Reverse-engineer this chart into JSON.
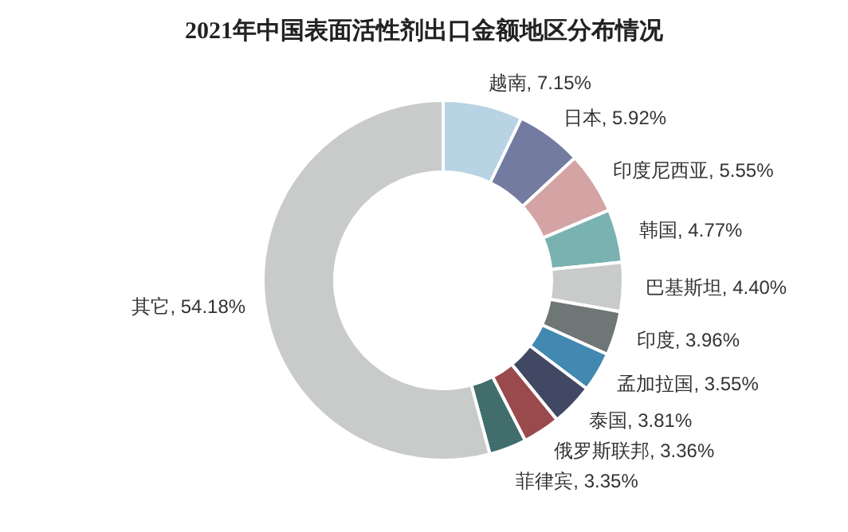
{
  "chart_data": {
    "type": "donut",
    "title": "2021年中国表面活性剂出口金额地区分布情况",
    "categories": [
      "越南",
      "日本",
      "印度尼西亚",
      "韩国",
      "巴基斯坦",
      "印度",
      "孟加拉国",
      "泰国",
      "俄罗斯联邦",
      "菲律宾",
      "其它"
    ],
    "values": [
      7.15,
      5.92,
      5.55,
      4.77,
      4.4,
      3.96,
      3.55,
      3.81,
      3.36,
      3.35,
      54.18
    ],
    "colors": [
      "#b7d3e4",
      "#737ba0",
      "#d4a3a3",
      "#7ab1b1",
      "#c8cbca",
      "#6f7776",
      "#4289b2",
      "#414863",
      "#9a4a4d",
      "#416d6d",
      "#c8cbca"
    ],
    "value_labels": [
      ", 7.15%",
      ", 5.92%",
      ", 5.55%",
      ", 4.77%",
      ", 4.40%",
      ", 3.96%",
      ", 3.55%",
      ", 3.81%",
      ", 3.36%",
      ", 3.35%",
      ", 54.18%"
    ]
  }
}
